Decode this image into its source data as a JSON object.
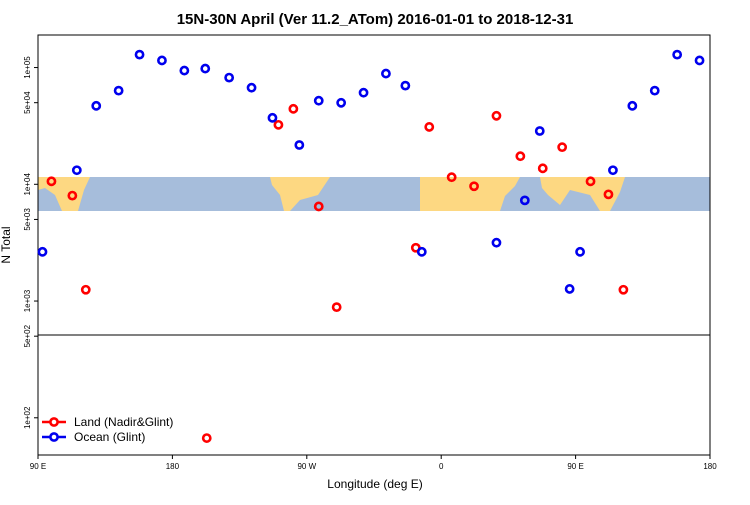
{
  "chart_data": {
    "type": "scatter",
    "title": "15N-30N April (Ver 11.2_ATom)   2016-01-01 to 2018-12-31",
    "x_label": "Longitude (deg E)",
    "y_label": "N Total",
    "xlim": [
      90,
      540
    ],
    "ylim": [
      48,
      190000
    ],
    "log_y": true,
    "xticks": [
      {
        "value": 90,
        "label": "90 E"
      },
      180,
      {
        "value": 270,
        "label": "90 W"
      },
      {
        "value": 360,
        "label": "0"
      },
      {
        "value": 450,
        "label": "90 E"
      },
      {
        "value": 540,
        "label": "180"
      }
    ],
    "yticks": [
      {
        "value": 100,
        "label": "1e+02"
      },
      {
        "value": 500,
        "label": "5e+02"
      },
      {
        "value": 1000,
        "label": "1e+03"
      },
      {
        "value": 5000,
        "label": "5e+03"
      },
      {
        "value": 10000,
        "label": "1e+04"
      },
      {
        "value": 50000,
        "label": "5e+04"
      },
      {
        "value": 100000,
        "label": "1e+05"
      }
    ],
    "legend": "bottom-left",
    "series": [
      {
        "name": "Land (Nadir&Glint)",
        "color": "#ff0000",
        "x": [
          99,
          113,
          122,
          251,
          261,
          278,
          290,
          343,
          352,
          367,
          382,
          397,
          413,
          428,
          441,
          460,
          472,
          482,
          203
        ],
        "values": [
          10600,
          8000,
          1250,
          32300,
          44300,
          6460,
          887,
          2860,
          31000,
          11500,
          9620,
          38600,
          17400,
          13700,
          20800,
          10600,
          8200,
          1250,
          67
        ]
      },
      {
        "name": "Ocean (Glint)",
        "color": "#0000ee",
        "x": [
          93,
          116,
          129,
          144,
          158,
          173,
          188,
          202,
          218,
          233,
          247,
          265,
          278,
          293,
          308,
          323,
          336,
          347,
          397,
          416,
          426,
          446,
          453,
          475,
          488,
          503,
          518,
          533
        ],
        "values": [
          2640,
          13200,
          47000,
          63400,
          129000,
          115000,
          94200,
          98000,
          82000,
          67200,
          37100,
          21700,
          52000,
          49900,
          60900,
          88800,
          70000,
          2640,
          3160,
          7280,
          28600,
          1270,
          2640,
          13200,
          47000,
          63400,
          129000,
          115000
        ]
      }
    ]
  }
}
